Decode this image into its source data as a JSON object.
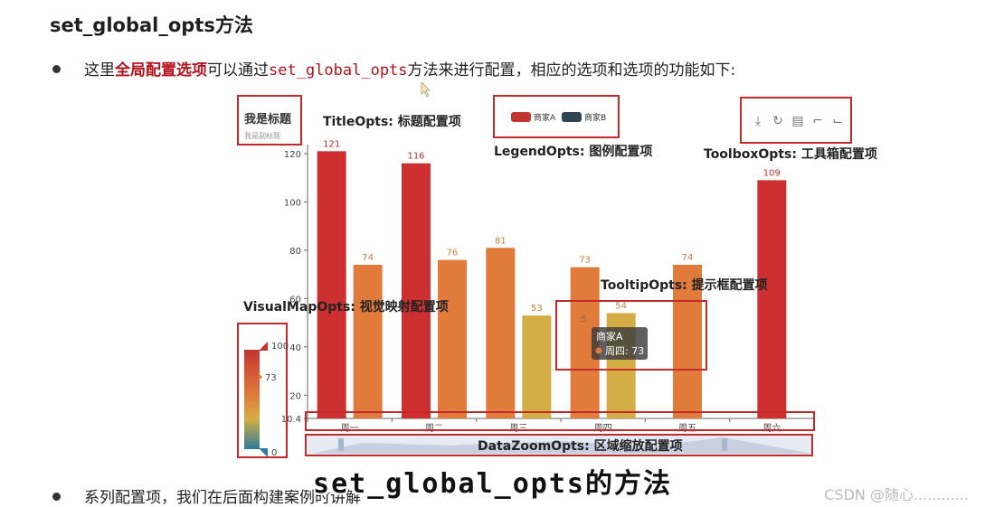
{
  "heading": "set_global_opts方法",
  "bullet1": {
    "pre": "这里",
    "highlight": "全局配置选项",
    "mid": "可以通过",
    "code": "set_global_opts",
    "post": "方法来进行配置，相应的选项和选项的功能如下:"
  },
  "bullet2": "系列配置项，我们在后面构建案例时讲解",
  "caption": "set_global_opts的方法",
  "watermark": "CSDN @随心............",
  "chart_data": {
    "type": "bar",
    "title": "我是标题",
    "subtitle": "我是副标题",
    "categories": [
      "周一",
      "周二",
      "周三",
      "周四",
      "周五",
      "周六"
    ],
    "series": [
      {
        "name": "商家A",
        "values": [
          121,
          116,
          81,
          73,
          74,
          109
        ]
      },
      {
        "name": "商家B",
        "values": [
          74,
          76,
          53,
          54,
          null,
          null
        ]
      }
    ],
    "ylim": [
      10.4,
      125
    ],
    "yticks": [
      "10.4",
      "20",
      "40",
      "60",
      "80",
      "100",
      "120"
    ],
    "visualmap": {
      "min": "0",
      "max": "100",
      "current": "73"
    },
    "tooltip": {
      "series": "商家A",
      "item": "周四: 73"
    },
    "labels": {
      "title": "TitleOpts: 标题配置项",
      "legend": "LegendOpts: 图例配置项",
      "toolbox": "ToolboxOpts: 工具箱配置项",
      "tooltip": "TooltipOpts: 提示框配置项",
      "visualmap": "VisualMapOpts: 视觉映射配置项",
      "datazoom": "DataZoomOpts: 区域缩放配置项"
    },
    "colors": {
      "box": "#c42a2a",
      "low": "#d4ad45",
      "mid": "#e07b3c",
      "high": "#cc3030",
      "legendA": "#c23531",
      "legendB": "#2f4554"
    }
  }
}
